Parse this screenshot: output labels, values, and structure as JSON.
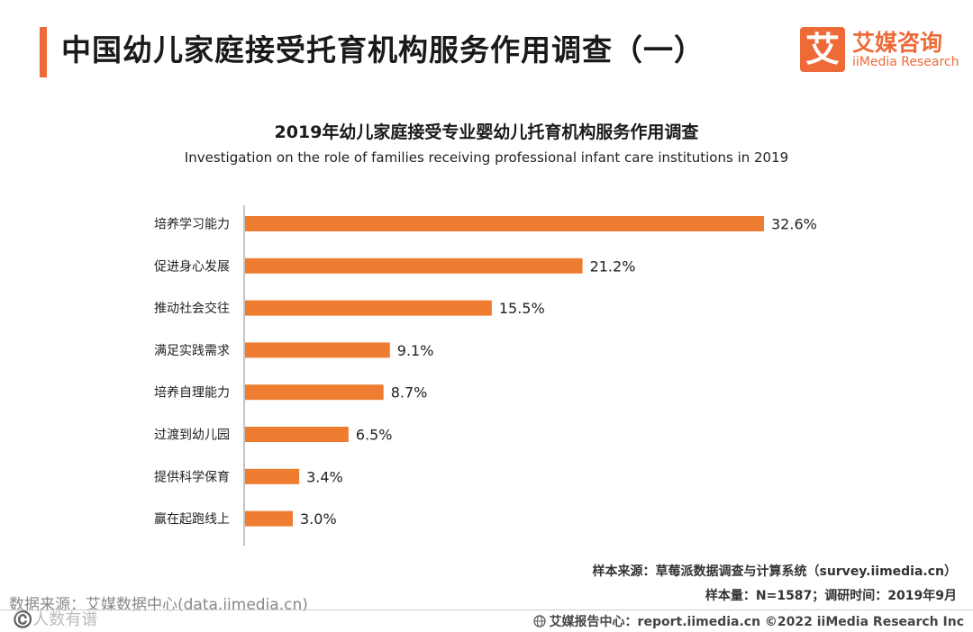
{
  "page": {
    "title": "中国幼儿家庭接受托育机构服务作用调查（一）"
  },
  "logo": {
    "mark": "艾",
    "cn": "艾媒咨询",
    "en": "iiMedia Research"
  },
  "chart_data": {
    "type": "bar",
    "orientation": "horizontal",
    "title": "2019年幼儿家庭接受专业婴幼儿托育机构服务作用调查",
    "subtitle": "Investigation on the role of families receiving professional infant care institutions in 2019",
    "categories": [
      "培养学习能力",
      "促进身心发展",
      "推动社会交往",
      "满足实践需求",
      "培养自理能力",
      "过渡到幼儿园",
      "提供科学保育",
      "赢在起跑线上"
    ],
    "values": [
      32.6,
      21.2,
      15.5,
      9.1,
      8.7,
      6.5,
      3.4,
      3.0
    ],
    "value_labels": [
      "32.6%",
      "21.2%",
      "15.5%",
      "9.1%",
      "8.7%",
      "6.5%",
      "3.4%",
      "3.0%"
    ],
    "unit": "%",
    "xlim": [
      0,
      32.6
    ],
    "bar_color": "#ee7d31"
  },
  "notes": {
    "source": "样本来源：草莓派数据调查与计算系统（survey.iimedia.cn）",
    "sample": "样本量：N=1587；调研时间：2019年9月"
  },
  "data_source": "数据来源：艾媒数据中心(data.iimedia.cn)",
  "watermark": "©️人数有谱",
  "footer": {
    "globe_icon": "globe-icon",
    "text": "艾媒报告中心：report.iimedia.cn  ©2022  iiMedia Research  Inc"
  },
  "colors": {
    "accent": "#ee6a37",
    "bar": "#ee7d31"
  }
}
